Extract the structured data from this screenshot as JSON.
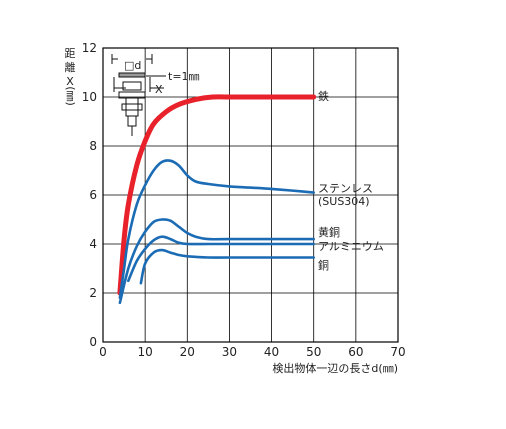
{
  "chart_data": {
    "type": "line",
    "xlabel": "検出物体一辺の長さd(㎜)",
    "ylabel": [
      "距",
      "離",
      "X",
      "(㎜)"
    ],
    "xlim": [
      0,
      70
    ],
    "ylim": [
      0,
      12
    ],
    "xticks": [
      "0",
      "10",
      "20",
      "30",
      "40",
      "50",
      "60",
      "70"
    ],
    "yticks": [
      "0",
      "2",
      "4",
      "6",
      "8",
      "10",
      "12"
    ],
    "grid": true,
    "annotation": "t=1㎜",
    "inset_labels": {
      "d": "□d",
      "x": "X"
    },
    "series": [
      {
        "name": "鉄",
        "color": "#e8212b",
        "x": [
          4,
          5,
          6,
          8,
          10,
          12,
          15,
          18,
          22,
          26,
          30,
          40,
          50
        ],
        "y": [
          2.0,
          4.2,
          5.6,
          7.2,
          8.2,
          8.9,
          9.4,
          9.7,
          9.9,
          10.0,
          10.0,
          10.0,
          10.0
        ]
      },
      {
        "name": "ステンレス",
        "name2": "(SUS304)",
        "color": "#1b6cb5",
        "x": [
          4,
          5,
          6,
          8,
          10,
          12,
          14,
          16,
          18,
          20,
          22,
          25,
          30,
          40,
          50
        ],
        "y": [
          1.8,
          3.0,
          4.2,
          5.6,
          6.4,
          7.0,
          7.35,
          7.4,
          7.2,
          6.8,
          6.55,
          6.45,
          6.35,
          6.25,
          6.1
        ]
      },
      {
        "name": "黄銅",
        "color": "#1b6cb5",
        "x": [
          4,
          6,
          8,
          10,
          12,
          14,
          16,
          18,
          20,
          22,
          25,
          30,
          40,
          50
        ],
        "y": [
          1.6,
          3.0,
          3.9,
          4.5,
          4.9,
          5.0,
          4.95,
          4.7,
          4.45,
          4.3,
          4.2,
          4.2,
          4.2,
          4.2
        ]
      },
      {
        "name": "アルミニウム",
        "color": "#1b6cb5",
        "x": [
          6,
          8,
          10,
          12,
          14,
          16,
          18,
          20,
          25,
          30,
          40,
          50
        ],
        "y": [
          2.5,
          3.3,
          3.8,
          4.15,
          4.3,
          4.2,
          4.05,
          4.0,
          4.0,
          4.0,
          4.0,
          4.0
        ]
      },
      {
        "name": "銅",
        "color": "#1b6cb5",
        "x": [
          9,
          10,
          12,
          14,
          16,
          18,
          20,
          25,
          30,
          40,
          50
        ],
        "y": [
          2.4,
          3.2,
          3.65,
          3.75,
          3.65,
          3.55,
          3.5,
          3.45,
          3.45,
          3.45,
          3.45
        ]
      }
    ]
  }
}
